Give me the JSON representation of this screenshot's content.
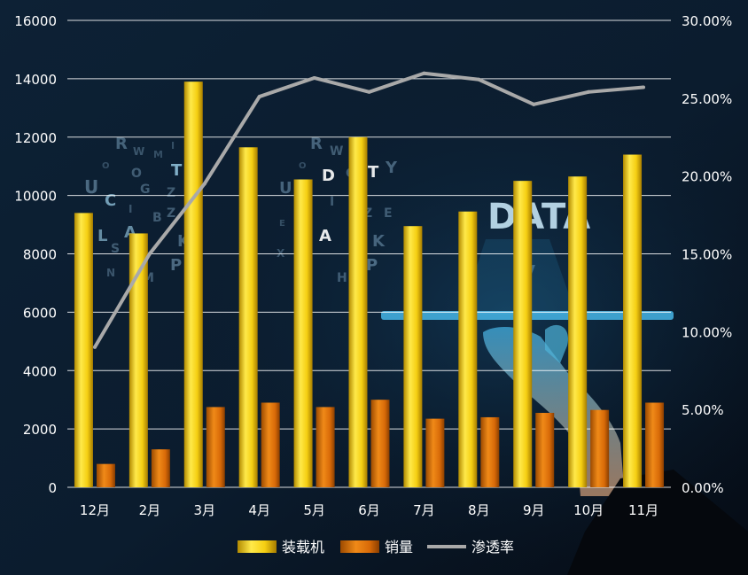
{
  "chart_data": {
    "type": "bar",
    "categories": [
      "12月",
      "2月",
      "3月",
      "4月",
      "5月",
      "6月",
      "7月",
      "8月",
      "9月",
      "10月",
      "11月"
    ],
    "series": [
      {
        "name": "装载机",
        "type": "bar",
        "axis": "left",
        "color": "#f2d200",
        "values": [
          9400,
          8700,
          13900,
          11650,
          10550,
          12000,
          8950,
          9450,
          10500,
          10650,
          11400
        ]
      },
      {
        "name": "销量",
        "type": "bar",
        "axis": "left",
        "color": "#e07a10",
        "values": [
          800,
          1300,
          2750,
          2900,
          2750,
          3000,
          2350,
          2400,
          2550,
          2650,
          2900
        ]
      },
      {
        "name": "渗透率",
        "type": "line",
        "axis": "right",
        "color": "#a9a9a9",
        "values": [
          0.09,
          0.15,
          0.195,
          0.251,
          0.263,
          0.254,
          0.266,
          0.262,
          0.246,
          0.254,
          0.257
        ]
      }
    ],
    "ylim": [
      0,
      16000
    ],
    "y_ticks": [
      "0",
      "2000",
      "4000",
      "6000",
      "8000",
      "10000",
      "12000",
      "14000",
      "16000"
    ],
    "y2lim": [
      0,
      0.3
    ],
    "y2_ticks": [
      "0.00%",
      "5.00%",
      "10.00%",
      "15.00%",
      "20.00%",
      "25.00%",
      "30.00%"
    ],
    "grid": true,
    "legend_position": "bottom",
    "background_text": "DATA"
  }
}
